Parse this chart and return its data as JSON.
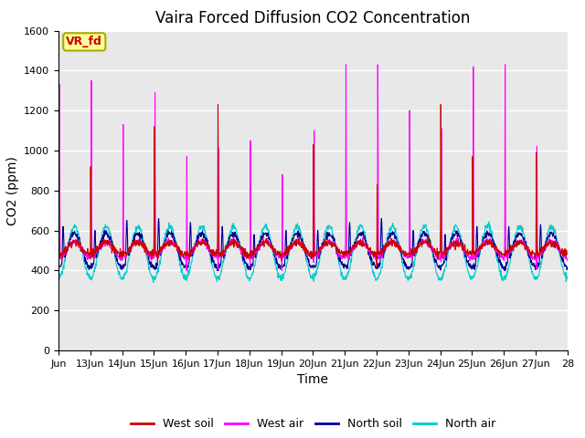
{
  "title": "Vaira Forced Diffusion CO2 Concentration",
  "xlabel": "Time",
  "ylabel": "CO2 (ppm)",
  "ylim": [
    0,
    1600
  ],
  "yticks": [
    0,
    200,
    400,
    600,
    800,
    1000,
    1200,
    1400,
    1600
  ],
  "x_tick_labels": [
    "Jun",
    "13Jun",
    "14Jun",
    "15Jun",
    "16Jun",
    "17Jun",
    "18Jun",
    "19Jun",
    "20Jun",
    "21Jun",
    "22Jun",
    "23Jun",
    "24Jun",
    "25Jun",
    "26Jun",
    "27Jun",
    "28"
  ],
  "legend_labels": [
    "West soil",
    "West air",
    "North soil",
    "North air"
  ],
  "legend_colors": [
    "#cc0000",
    "#ff00ff",
    "#000099",
    "#00cccc"
  ],
  "annotation_text": "VR_fd",
  "annotation_color": "#cc0000",
  "annotation_bg": "#ffff99",
  "annotation_edge": "#aaaa00",
  "plot_bg": "#e8e8e8",
  "grid_color": "#ffffff",
  "title_fontsize": 12,
  "label_fontsize": 10,
  "tick_fontsize": 8,
  "west_air_spikes": [
    1330,
    1350,
    1130,
    1290,
    970,
    1010,
    1050,
    880,
    1100,
    1430,
    1430,
    1200,
    1110,
    1420,
    1430,
    1020
  ],
  "west_soil_spikes": [
    1070,
    920,
    0,
    1120,
    0,
    1230,
    0,
    0,
    1030,
    0,
    830,
    0,
    1230,
    970,
    0,
    990
  ],
  "north_soil_bumps": [
    620,
    600,
    650,
    660,
    640,
    620,
    580,
    600,
    600,
    640,
    660,
    600,
    580,
    620,
    620,
    630
  ],
  "n_days": 16,
  "pts_per_day": 96
}
